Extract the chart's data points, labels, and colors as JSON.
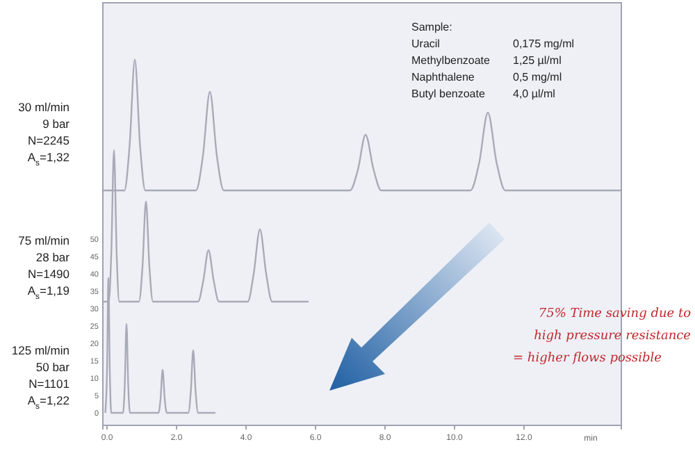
{
  "chart_data": {
    "type": "line",
    "xlabel": "min",
    "xlim": [
      -0.12,
      14.8
    ],
    "xticks": [
      {
        "value": 0,
        "label": "0.0"
      },
      {
        "value": 2,
        "label": "2.0"
      },
      {
        "value": 4,
        "label": "4.0"
      },
      {
        "value": 6,
        "label": "6.0"
      },
      {
        "value": 8,
        "label": "8.0"
      },
      {
        "value": 10,
        "label": "10.0"
      },
      {
        "value": 12,
        "label": "12.0"
      }
    ],
    "ylim": [
      -3.6,
      118
    ],
    "yticks": [
      0,
      5,
      10,
      15,
      20,
      25,
      30,
      35,
      40,
      45,
      50
    ],
    "grid": false,
    "series": [
      {
        "color": "#a9aab8",
        "x": [
          -0.1,
          0.5,
          0.65,
          0.8,
          0.95,
          1.1,
          2.56,
          2.76,
          2.96,
          3.16,
          3.36,
          6.99,
          7.22,
          7.44,
          7.67,
          7.89,
          10.46,
          10.71,
          10.96,
          11.21,
          11.46,
          14.8
        ],
        "values": [
          64,
          64,
          77,
          101.6,
          77,
          64,
          64,
          74,
          92.4,
          74,
          64,
          64,
          70,
          80,
          70,
          64,
          64,
          72,
          86.4,
          72,
          64,
          64
        ]
      },
      {
        "color": "#a9aab8",
        "x": [
          -0.1,
          0.05,
          0.12,
          0.2,
          0.28,
          0.35,
          0.92,
          1.02,
          1.12,
          1.22,
          1.32,
          2.62,
          2.77,
          2.92,
          3.07,
          3.22,
          4.05,
          4.22,
          4.4,
          4.58,
          4.75,
          5.8
        ],
        "values": [
          32,
          32,
          45,
          75.6,
          45,
          32,
          32,
          42,
          60.8,
          42,
          32,
          32,
          38,
          46.8,
          38,
          32,
          32,
          40,
          52.8,
          40,
          32,
          32
        ]
      },
      {
        "color": "#a9aab8",
        "x": [
          -0.05,
          0.0,
          0.04,
          0.08,
          0.12,
          0.46,
          0.51,
          0.56,
          0.61,
          0.66,
          1.48,
          1.54,
          1.6,
          1.66,
          1.72,
          2.34,
          2.41,
          2.48,
          2.55,
          2.62,
          3.12
        ],
        "values": [
          0,
          12,
          38.8,
          12,
          0,
          0,
          8,
          25.6,
          8,
          0,
          0,
          4,
          12.4,
          4,
          0,
          0,
          6,
          18,
          6,
          0,
          0
        ]
      }
    ],
    "annotations": [
      "30 ml/min",
      "9 bar",
      "N=2245",
      "A$_{s}$=1,32",
      "75 ml/min",
      "28 bar",
      "N=1490",
      "A$_{s}$=1,19",
      "125 ml/min",
      "50 bar",
      "N=1101",
      "A$_{s}$=1,22",
      "Sample:",
      "Uracil",
      "0,175 mg/ml",
      "Methylbenzoate",
      "1,25 µl/ml",
      "Naphthalene",
      "0,5 mg/ml",
      "Butyl benzoate",
      "4,0 µl/ml",
      "75% Time saving due to",
      "high pressure resistance",
      "= higher flows possible"
    ]
  }
}
